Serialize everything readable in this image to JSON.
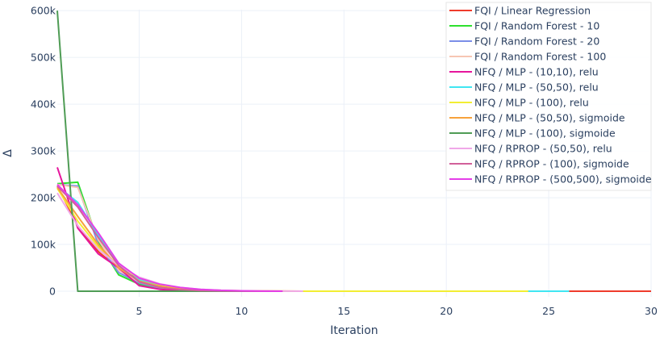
{
  "chart_data": {
    "type": "line",
    "title": "",
    "xlabel": "Iteration",
    "ylabel": "Δ",
    "xlim": [
      1,
      30
    ],
    "ylim": [
      -12000,
      602000
    ],
    "x_ticks": [
      5,
      10,
      15,
      20,
      25,
      30
    ],
    "x_tick_labels": [
      "5",
      "10",
      "15",
      "20",
      "25",
      "30"
    ],
    "y_ticks": [
      0,
      100000,
      200000,
      300000,
      400000,
      500000,
      600000
    ],
    "y_tick_labels": [
      "0",
      "100k",
      "200k",
      "300k",
      "400k",
      "500k",
      "600k"
    ],
    "grid": true,
    "legend_position": "top-right",
    "series": [
      {
        "name": "FQI / Linear Regression",
        "color": "#ef3b2c",
        "x": [
          1,
          2,
          3,
          4,
          5,
          6,
          7,
          8,
          9,
          10,
          11,
          12,
          13,
          14,
          15,
          16,
          17,
          18,
          19,
          20,
          21,
          22,
          23,
          24,
          25,
          26,
          27,
          28,
          29,
          30
        ],
        "y": [
          225000,
          140000,
          85000,
          48000,
          25000,
          12000,
          6000,
          3000,
          1500,
          800,
          400,
          200,
          100,
          50,
          0,
          0,
          0,
          0,
          0,
          0,
          0,
          0,
          0,
          0,
          0,
          0,
          0,
          0,
          0,
          0
        ]
      },
      {
        "name": "FQI / Random Forest - 10",
        "color": "#2ee02e",
        "x": [
          1,
          2,
          3,
          4,
          5,
          6,
          7,
          8,
          9,
          10,
          11,
          12
        ],
        "y": [
          230000,
          233000,
          105000,
          35000,
          15000,
          6000,
          2500,
          1000,
          500,
          200,
          100,
          0
        ]
      },
      {
        "name": "FQI / Random Forest - 20",
        "color": "#7b8ee8",
        "x": [
          1,
          2,
          3,
          4,
          5,
          6,
          7,
          8,
          9,
          10,
          11,
          12
        ],
        "y": [
          228000,
          225000,
          100000,
          40000,
          18000,
          7000,
          3000,
          1500,
          700,
          300,
          100,
          0
        ]
      },
      {
        "name": "FQI / Random Forest - 100",
        "color": "#f7c6b3",
        "x": [
          1,
          2,
          3,
          4,
          5,
          6,
          7,
          8,
          9,
          10,
          11,
          12
        ],
        "y": [
          228000,
          222000,
          110000,
          45000,
          20000,
          8000,
          3500,
          1500,
          700,
          300,
          100,
          0
        ]
      },
      {
        "name": "NFQ / MLP - (10,10), relu",
        "color": "#e6159c",
        "x": [
          1,
          2,
          3,
          4,
          5,
          6,
          7,
          8,
          9,
          10,
          11,
          12
        ],
        "y": [
          265000,
          135000,
          80000,
          50000,
          12000,
          4000,
          1500,
          600,
          200,
          100,
          0,
          0
        ]
      },
      {
        "name": "NFQ / MLP - (50,50), relu",
        "color": "#40e6f2",
        "x": [
          1,
          2,
          3,
          4,
          5,
          6,
          7,
          8,
          9,
          10,
          11,
          12,
          13,
          14,
          15,
          16,
          17,
          18,
          19,
          20,
          21,
          22,
          23,
          24,
          25,
          26
        ],
        "y": [
          225000,
          190000,
          120000,
          60000,
          25000,
          10000,
          4000,
          1500,
          600,
          200,
          100,
          0,
          0,
          0,
          0,
          0,
          0,
          0,
          0,
          0,
          0,
          0,
          0,
          0,
          0,
          0
        ]
      },
      {
        "name": "NFQ / MLP - (100), relu",
        "color": "#f2ee33",
        "x": [
          1,
          2,
          3,
          4,
          5,
          6,
          7,
          8,
          9,
          10,
          11,
          12,
          13,
          14,
          15,
          16,
          17,
          18,
          19,
          20,
          21,
          22,
          23,
          24
        ],
        "y": [
          220000,
          150000,
          95000,
          55000,
          28000,
          14000,
          7000,
          3500,
          1800,
          900,
          400,
          200,
          100,
          0,
          0,
          0,
          0,
          0,
          0,
          0,
          0,
          0,
          0,
          0
        ]
      },
      {
        "name": "NFQ / MLP - (50,50), sigmoide",
        "color": "#f7a23c",
        "x": [
          1,
          2,
          3,
          4,
          5,
          6,
          7,
          8,
          9,
          10,
          11,
          12
        ],
        "y": [
          222000,
          160000,
          100000,
          50000,
          22000,
          10000,
          5000,
          2500,
          1200,
          500,
          200,
          0
        ]
      },
      {
        "name": "NFQ / MLP - (100), sigmoide",
        "color": "#4f9c55",
        "x": [
          1,
          2,
          3,
          4,
          5,
          6,
          7,
          8,
          9,
          10,
          11,
          12
        ],
        "y": [
          600000,
          0,
          0,
          0,
          0,
          0,
          0,
          0,
          0,
          0,
          0,
          0
        ]
      },
      {
        "name": "NFQ / RPROP - (50,50), relu",
        "color": "#f0a8e8",
        "x": [
          1,
          2,
          3,
          4,
          5,
          6,
          7,
          8,
          9,
          10,
          11,
          12,
          13
        ],
        "y": [
          210000,
          140000,
          90000,
          55000,
          30000,
          16000,
          8000,
          4000,
          2000,
          1000,
          500,
          200,
          0
        ]
      },
      {
        "name": "NFQ / RPROP - (100), sigmoide",
        "color": "#d1609a",
        "x": [
          1,
          2,
          3,
          4,
          5,
          6,
          7,
          8,
          9,
          10,
          11,
          12
        ],
        "y": [
          225000,
          180000,
          115000,
          55000,
          20000,
          8000,
          3500,
          1500,
          700,
          300,
          100,
          0
        ]
      },
      {
        "name": "NFQ / RPROP - (500,500), sigmoide",
        "color": "#e43ee8",
        "x": [
          1,
          2,
          3,
          4,
          5,
          6,
          7,
          8,
          9,
          10,
          11,
          12
        ],
        "y": [
          228000,
          185000,
          125000,
          60000,
          28000,
          15000,
          8000,
          4000,
          2000,
          900,
          300,
          0
        ]
      }
    ]
  },
  "colors": {
    "grid": "#ebf0f8",
    "text": "#2a3f5f",
    "legend_bg": "#ffffff",
    "legend_border": "#e5e5e5"
  }
}
